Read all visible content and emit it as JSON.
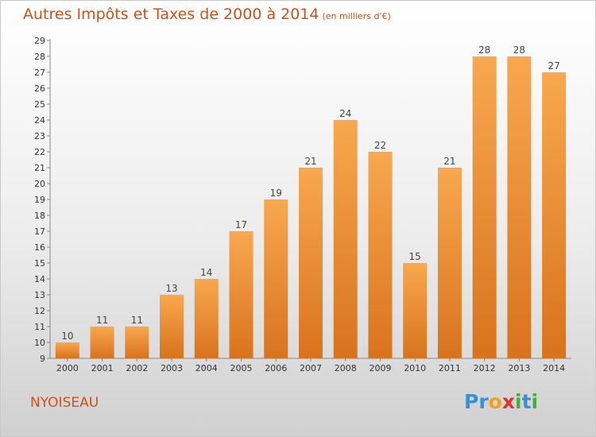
{
  "header": {
    "title": "Autres Impôts et Taxes de 2000 à 2014",
    "unit": "(en milliers d'€)"
  },
  "footer": {
    "commune": "NYOISEAU",
    "logo": {
      "letters": [
        "P",
        "r",
        "o",
        "x",
        "i",
        "t",
        "i"
      ]
    }
  },
  "colors": {
    "title": "#d0501a",
    "bar_top": "#f8a850",
    "bar_bottom": "#d8731c",
    "logo": [
      "#3a8fd6",
      "#3a8fd6",
      "#f0a020",
      "#e03030",
      "#40b040",
      "#3a8fd6",
      "#40b040"
    ]
  },
  "chart_data": {
    "type": "bar",
    "categories": [
      "2000",
      "2001",
      "2002",
      "2003",
      "2004",
      "2005",
      "2006",
      "2007",
      "2008",
      "2009",
      "2010",
      "2011",
      "2012",
      "2013",
      "2014"
    ],
    "values": [
      10,
      11,
      11,
      13,
      14,
      17,
      19,
      21,
      24,
      22,
      15,
      21,
      28,
      28,
      27
    ],
    "data_labels": [
      "10",
      "11",
      "11",
      "13",
      "14",
      "17",
      "19",
      "21",
      "24",
      "22",
      "15",
      "21",
      "28",
      "28",
      "27"
    ],
    "y_ticks": [
      "9",
      "10",
      "11",
      "12",
      "13",
      "14",
      "15",
      "16",
      "17",
      "18",
      "19",
      "20",
      "21",
      "22",
      "23",
      "24",
      "25",
      "26",
      "27",
      "28",
      "29"
    ],
    "ylim": [
      9,
      29
    ],
    "grid": false,
    "legend": "none"
  }
}
